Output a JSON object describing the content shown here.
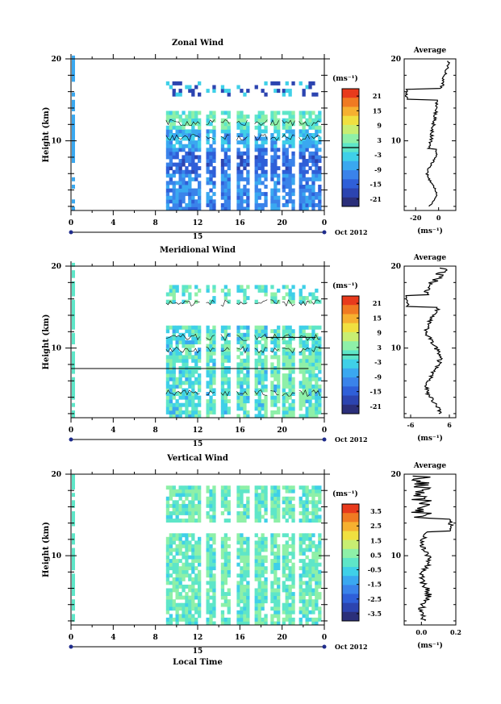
{
  "chart_data": [
    {
      "type": "heatmap",
      "title": "Zonal Wind",
      "ylabel": "Height (km)",
      "ylim": [
        1.5,
        20
      ],
      "yticks": [
        "20",
        "10"
      ],
      "xticks": [
        "0",
        "4",
        "8",
        "12",
        "16",
        "20",
        "0"
      ],
      "date_day": "15",
      "date_label": "Oct 2012",
      "colorbar": {
        "unit": "(ms⁻¹)",
        "ticks": [
          "21",
          "15",
          "9",
          "3",
          "-3",
          "-9",
          "-15",
          "-21"
        ],
        "min": -24,
        "max": 24,
        "zero_line": true
      },
      "average": {
        "title": "Average",
        "yticks": [
          "20",
          "10"
        ],
        "xticks": [
          "-20",
          "0"
        ],
        "xlabel": "(ms⁻¹)",
        "xlim": [
          -30,
          15
        ]
      }
    },
    {
      "type": "heatmap",
      "title": "Meridional Wind",
      "ylabel": "Height (km)",
      "ylim": [
        1.5,
        20
      ],
      "yticks": [
        "20",
        "10"
      ],
      "xticks": [
        "0",
        "4",
        "8",
        "12",
        "16",
        "20",
        "0"
      ],
      "date_day": "15",
      "date_label": "Oct 2012",
      "colorbar": {
        "unit": "(ms⁻¹)",
        "ticks": [
          "21",
          "15",
          "9",
          "3",
          "-3",
          "-9",
          "-15",
          "-21"
        ],
        "min": -24,
        "max": 24,
        "zero_line": true
      },
      "average": {
        "title": "Average",
        "yticks": [
          "20",
          "10"
        ],
        "xticks": [
          "-6",
          "6"
        ],
        "xlabel": "(ms⁻¹)",
        "xlim": [
          -8,
          8
        ]
      }
    },
    {
      "type": "heatmap",
      "title": "Vertical Wind",
      "ylabel": "Height (km)",
      "ylim": [
        1.5,
        20
      ],
      "yticks": [
        "20",
        "10"
      ],
      "xticks": [
        "0",
        "4",
        "8",
        "12",
        "16",
        "20",
        "0"
      ],
      "date_day": "15",
      "date_label": "Oct 2012",
      "xlabel": "Local Time",
      "colorbar": {
        "unit": "(ms⁻¹)",
        "ticks": [
          "3.5",
          "2.5",
          "1.5",
          "0.5",
          "-0.5",
          "-1.5",
          "-2.5",
          "-3.5"
        ],
        "min": -4,
        "max": 4,
        "zero_line": false
      },
      "average": {
        "title": "Average",
        "yticks": [
          "20",
          "10"
        ],
        "xticks": [
          "0.0",
          "0.2"
        ],
        "xlabel": "(ms⁻¹)",
        "xlim": [
          -0.1,
          0.2
        ]
      }
    }
  ]
}
